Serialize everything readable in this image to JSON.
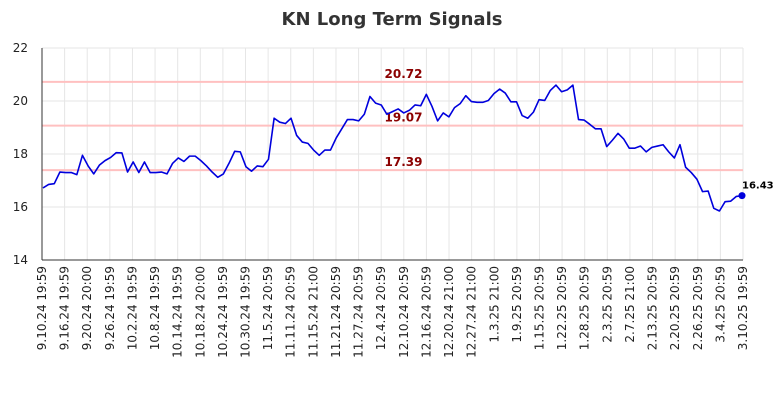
{
  "chart_data": {
    "type": "line",
    "title": "KN Long Term Signals",
    "xlabel": "",
    "ylabel": "",
    "ylim": [
      14,
      22
    ],
    "yticks": [
      14,
      16,
      18,
      20,
      22
    ],
    "grid": true,
    "line_color": "#0000dd",
    "ref_line_color": "#ffc0c0",
    "ref_label_color": "#8b0000",
    "x_tick_labels": [
      "9.10.24 19:59",
      "9.16.24 19:59",
      "9.20.24 20:00",
      "9.26.24 19:59",
      "10.2.24 19:59",
      "10.8.24 19:59",
      "10.14.24 19:59",
      "10.18.24 20:00",
      "10.24.24 19:59",
      "10.30.24 19:59",
      "11.5.24 20:59",
      "11.11.24 20:59",
      "11.15.24 21:00",
      "11.21.24 20:59",
      "11.27.24 20:59",
      "12.4.24 20:59",
      "12.10.24 20:59",
      "12.16.24 20:59",
      "12.20.24 21:00",
      "12.27.24 21:00",
      "1.3.25 21:00",
      "1.9.25 20:59",
      "1.15.25 20:59",
      "1.22.25 20:59",
      "1.28.25 20:59",
      "2.3.25 20:59",
      "2.7.25 21:00",
      "2.13.25 20:59",
      "2.20.25 20:59",
      "2.26.25 20:59",
      "3.4.25 20:59",
      "3.10.25 19:59"
    ],
    "reference_lines": [
      {
        "value": 20.72,
        "label": "20.72"
      },
      {
        "value": 19.07,
        "label": "19.07"
      },
      {
        "value": 17.39,
        "label": "17.39"
      }
    ],
    "values": [
      16.72,
      16.85,
      16.88,
      17.32,
      17.3,
      17.3,
      17.22,
      17.95,
      17.55,
      17.25,
      17.58,
      17.75,
      17.87,
      18.05,
      18.04,
      17.32,
      17.7,
      17.3,
      17.7,
      17.3,
      17.3,
      17.32,
      17.25,
      17.65,
      17.85,
      17.72,
      17.92,
      17.92,
      17.75,
      17.55,
      17.32,
      17.12,
      17.25,
      17.65,
      18.1,
      18.08,
      17.52,
      17.35,
      17.55,
      17.52,
      17.8,
      19.35,
      19.2,
      19.15,
      19.35,
      18.7,
      18.45,
      18.4,
      18.15,
      17.95,
      18.15,
      18.15,
      18.6,
      18.95,
      19.3,
      19.3,
      19.25,
      19.5,
      20.17,
      19.92,
      19.85,
      19.5,
      19.6,
      19.7,
      19.55,
      19.65,
      19.85,
      19.82,
      20.25,
      19.8,
      19.25,
      19.55,
      19.4,
      19.75,
      19.9,
      20.2,
      19.98,
      19.95,
      19.95,
      20.02,
      20.28,
      20.45,
      20.3,
      19.97,
      19.97,
      19.45,
      19.35,
      19.58,
      20.05,
      20.02,
      20.4,
      20.6,
      20.35,
      20.42,
      20.6,
      19.3,
      19.28,
      19.12,
      18.95,
      18.95,
      18.28,
      18.52,
      18.78,
      18.57,
      18.22,
      18.22,
      18.3,
      18.08,
      18.25,
      18.3,
      18.35,
      18.08,
      17.85,
      18.35,
      17.5,
      17.3,
      17.05,
      16.58,
      16.6,
      15.95,
      15.85,
      16.2,
      16.22,
      16.4,
      16.43
    ],
    "last_value_label": "16.43"
  }
}
